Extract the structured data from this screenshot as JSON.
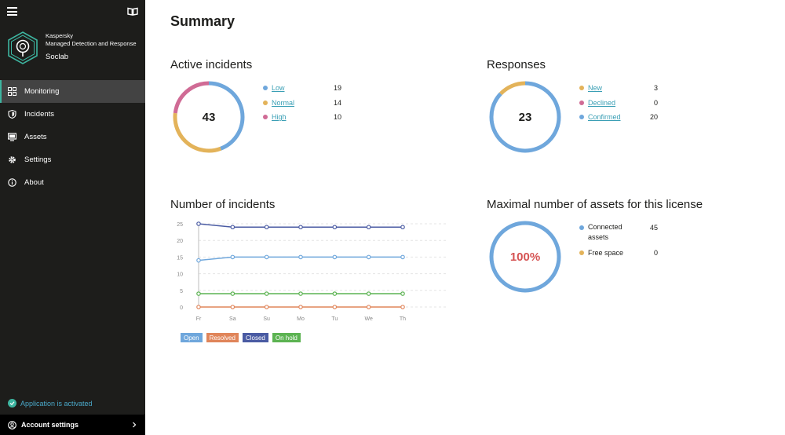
{
  "sidebar": {
    "brand": {
      "line1": "Kaspersky",
      "line2": "Managed Detection and Response",
      "tenant": "Soclab"
    },
    "items": [
      {
        "label": "Monitoring",
        "icon": "dashboard-icon",
        "active": true
      },
      {
        "label": "Incidents",
        "icon": "shield-icon",
        "active": false
      },
      {
        "label": "Assets",
        "icon": "monitor-icon",
        "active": false
      },
      {
        "label": "Settings",
        "icon": "gear-icon",
        "active": false
      },
      {
        "label": "About",
        "icon": "info-icon",
        "active": false
      }
    ],
    "status": "Application is activated",
    "account": "Account settings"
  },
  "main": {
    "title": "Summary",
    "active_incidents": {
      "title": "Active incidents",
      "total": "43",
      "legend": [
        {
          "label": "Low",
          "value": "19",
          "color": "#6fa7dc"
        },
        {
          "label": "Normal",
          "value": "14",
          "color": "#e3b35a"
        },
        {
          "label": "High",
          "value": "10",
          "color": "#d06b95"
        }
      ]
    },
    "responses": {
      "title": "Responses",
      "total": "23",
      "legend": [
        {
          "label": "New",
          "value": "3",
          "color": "#e3b35a"
        },
        {
          "label": "Declined",
          "value": "0",
          "color": "#d06b95"
        },
        {
          "label": "Confirmed",
          "value": "20",
          "color": "#6fa7dc"
        }
      ]
    },
    "number_of_incidents": {
      "title": "Number of incidents",
      "tags": [
        {
          "label": "Open",
          "color": "#6fa7dc"
        },
        {
          "label": "Resolved",
          "color": "#e0855a"
        },
        {
          "label": "Closed",
          "color": "#4a5ba3"
        },
        {
          "label": "On hold",
          "color": "#5cb352"
        }
      ]
    },
    "assets": {
      "title": "Maximal number of assets for this license",
      "percent": "100%",
      "percent_value": 100,
      "legend": [
        {
          "label": "Connected assets",
          "value": "45",
          "color": "#6fa7dc"
        },
        {
          "label": "Free space",
          "value": "0",
          "color": "#e3b35a"
        }
      ]
    }
  },
  "chart_data": {
    "type": "line",
    "x": [
      "Fr",
      "Sa",
      "Su",
      "Mo",
      "Tu",
      "We",
      "Th"
    ],
    "ylim": [
      0,
      25
    ],
    "yticks": [
      0,
      5,
      10,
      15,
      20,
      25
    ],
    "grid": true,
    "series": [
      {
        "name": "Open",
        "color": "#6fa7dc",
        "values": [
          14,
          15,
          15,
          15,
          15,
          15,
          15
        ]
      },
      {
        "name": "Resolved",
        "color": "#e0855a",
        "values": [
          0,
          0,
          0,
          0,
          0,
          0,
          0
        ]
      },
      {
        "name": "Closed",
        "color": "#4a5ba3",
        "values": [
          25,
          24,
          24,
          24,
          24,
          24,
          24
        ]
      },
      {
        "name": "On hold",
        "color": "#5cb352",
        "values": [
          4,
          4,
          4,
          4,
          4,
          4,
          4
        ]
      }
    ]
  }
}
